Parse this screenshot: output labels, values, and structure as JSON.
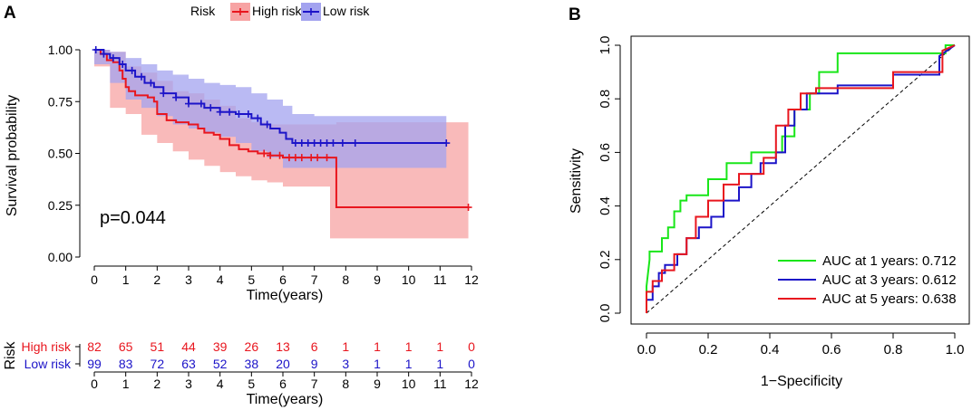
{
  "panel_a_label": "A",
  "panel_b_label": "B",
  "chart_data": [
    {
      "type": "line",
      "subtype": "kaplan-meier",
      "title": "",
      "xlabel": "Time(years)",
      "ylabel": "Survival probability",
      "xlim": [
        0,
        12
      ],
      "ylim": [
        0,
        1
      ],
      "xticks": [
        "0",
        "1",
        "2",
        "3",
        "4",
        "5",
        "6",
        "7",
        "8",
        "9",
        "10",
        "11",
        "12"
      ],
      "yticks": [
        "0.00",
        "0.25",
        "0.50",
        "0.75",
        "1.00"
      ],
      "legend_title": "Risk",
      "annotation": "p=0.044",
      "series": [
        {
          "name": "High risk",
          "color": "#e8161e",
          "band_color": "#f7a3a3",
          "points": [
            [
              0,
              1.0
            ],
            [
              0.2,
              0.98
            ],
            [
              0.4,
              0.95
            ],
            [
              0.6,
              0.94
            ],
            [
              0.8,
              0.9
            ],
            [
              0.9,
              0.86
            ],
            [
              1.0,
              0.82
            ],
            [
              1.1,
              0.8
            ],
            [
              1.3,
              0.78
            ],
            [
              1.7,
              0.77
            ],
            [
              1.9,
              0.75
            ],
            [
              2.0,
              0.69
            ],
            [
              2.3,
              0.66
            ],
            [
              2.6,
              0.65
            ],
            [
              3.0,
              0.64
            ],
            [
              3.3,
              0.62
            ],
            [
              3.5,
              0.6
            ],
            [
              3.8,
              0.59
            ],
            [
              4.0,
              0.57
            ],
            [
              4.3,
              0.54
            ],
            [
              4.6,
              0.52
            ],
            [
              4.9,
              0.51
            ],
            [
              5.2,
              0.5
            ],
            [
              5.6,
              0.49
            ],
            [
              6.0,
              0.48
            ],
            [
              6.4,
              0.48
            ],
            [
              7.0,
              0.48
            ],
            [
              7.5,
              0.48
            ],
            [
              7.7,
              0.24
            ],
            [
              11.9,
              0.24
            ]
          ],
          "upper": [
            [
              0,
              1.0
            ],
            [
              0.5,
              0.99
            ],
            [
              1.0,
              0.92
            ],
            [
              1.5,
              0.89
            ],
            [
              2.0,
              0.85
            ],
            [
              2.5,
              0.8
            ],
            [
              3.0,
              0.79
            ],
            [
              3.5,
              0.76
            ],
            [
              4.0,
              0.73
            ],
            [
              4.5,
              0.67
            ],
            [
              5.0,
              0.65
            ],
            [
              5.5,
              0.64
            ],
            [
              6.0,
              0.64
            ],
            [
              7.5,
              0.64
            ],
            [
              7.7,
              0.65
            ],
            [
              11.9,
              0.65
            ]
          ],
          "lower": [
            [
              0,
              1.0
            ],
            [
              0.5,
              0.92
            ],
            [
              1.0,
              0.72
            ],
            [
              1.5,
              0.69
            ],
            [
              2.0,
              0.59
            ],
            [
              2.5,
              0.55
            ],
            [
              3.0,
              0.51
            ],
            [
              3.5,
              0.47
            ],
            [
              4.0,
              0.44
            ],
            [
              4.5,
              0.41
            ],
            [
              5.0,
              0.39
            ],
            [
              5.5,
              0.37
            ],
            [
              6.0,
              0.36
            ],
            [
              7.5,
              0.34
            ],
            [
              7.7,
              0.09
            ],
            [
              11.9,
              0.09
            ]
          ],
          "censors": [
            5.4,
            5.6,
            5.9,
            6.2,
            6.4,
            6.6,
            6.9,
            7.1,
            7.4,
            11.9
          ]
        },
        {
          "name": "Low risk",
          "color": "#1c14c8",
          "band_color": "#a3a3ef",
          "points": [
            [
              0,
              1.0
            ],
            [
              0.3,
              0.98
            ],
            [
              0.5,
              0.96
            ],
            [
              0.8,
              0.93
            ],
            [
              1.0,
              0.9
            ],
            [
              1.3,
              0.87
            ],
            [
              1.6,
              0.84
            ],
            [
              1.9,
              0.82
            ],
            [
              2.2,
              0.79
            ],
            [
              2.6,
              0.77
            ],
            [
              3.0,
              0.74
            ],
            [
              3.5,
              0.72
            ],
            [
              4.0,
              0.7
            ],
            [
              4.5,
              0.69
            ],
            [
              5.0,
              0.67
            ],
            [
              5.3,
              0.64
            ],
            [
              5.6,
              0.62
            ],
            [
              5.9,
              0.6
            ],
            [
              6.1,
              0.57
            ],
            [
              6.3,
              0.55
            ],
            [
              7.0,
              0.55
            ],
            [
              11.2,
              0.55
            ]
          ],
          "upper": [
            [
              0,
              1.0
            ],
            [
              0.5,
              0.99
            ],
            [
              1.0,
              0.96
            ],
            [
              1.5,
              0.93
            ],
            [
              2.0,
              0.9
            ],
            [
              2.5,
              0.88
            ],
            [
              3.0,
              0.86
            ],
            [
              3.5,
              0.84
            ],
            [
              4.0,
              0.83
            ],
            [
              4.5,
              0.82
            ],
            [
              5.0,
              0.79
            ],
            [
              5.5,
              0.76
            ],
            [
              6.0,
              0.73
            ],
            [
              6.3,
              0.69
            ],
            [
              7.0,
              0.68
            ],
            [
              11.2,
              0.68
            ]
          ],
          "lower": [
            [
              0,
              1.0
            ],
            [
              0.5,
              0.93
            ],
            [
              1.0,
              0.84
            ],
            [
              1.5,
              0.76
            ],
            [
              2.0,
              0.72
            ],
            [
              2.5,
              0.68
            ],
            [
              3.0,
              0.64
            ],
            [
              3.5,
              0.62
            ],
            [
              4.0,
              0.6
            ],
            [
              4.5,
              0.58
            ],
            [
              5.0,
              0.55
            ],
            [
              5.5,
              0.51
            ],
            [
              6.0,
              0.48
            ],
            [
              6.3,
              0.43
            ],
            [
              7.0,
              0.43
            ],
            [
              11.2,
              0.43
            ]
          ],
          "censors": [
            0.05,
            0.3,
            0.6,
            0.9,
            1.2,
            1.5,
            1.8,
            2.2,
            2.6,
            3.0,
            3.4,
            3.7,
            4.0,
            4.3,
            4.6,
            4.9,
            5.2,
            5.5,
            6.4,
            6.6,
            6.8,
            7.0,
            7.2,
            7.4,
            7.6,
            7.9,
            8.3,
            11.2
          ]
        }
      ]
    },
    {
      "type": "table",
      "title": "Risk",
      "xlabel": "Time(years)",
      "xticks": [
        "0",
        "1",
        "2",
        "3",
        "4",
        "5",
        "6",
        "7",
        "8",
        "9",
        "10",
        "11",
        "12"
      ],
      "rows": [
        {
          "name": "High risk",
          "color": "#e8161e",
          "values": [
            "82",
            "65",
            "51",
            "44",
            "39",
            "26",
            "13",
            "6",
            "1",
            "1",
            "1",
            "1",
            "0"
          ]
        },
        {
          "name": "Low risk",
          "color": "#1c14c8",
          "values": [
            "99",
            "83",
            "72",
            "63",
            "52",
            "38",
            "20",
            "9",
            "3",
            "1",
            "1",
            "1",
            "0"
          ]
        }
      ]
    },
    {
      "type": "line",
      "subtype": "roc",
      "title": "",
      "xlabel": "1−Specificity",
      "ylabel": "Sensitivity",
      "xlim": [
        0,
        1
      ],
      "ylim": [
        0,
        1
      ],
      "xticks": [
        "0.0",
        "0.2",
        "0.4",
        "0.6",
        "0.8",
        "1.0"
      ],
      "yticks": [
        "0.0",
        "0.2",
        "0.4",
        "0.6",
        "0.8",
        "1.0"
      ],
      "diagonal": true,
      "series": [
        {
          "name": "AUC at 1 years: 0.712",
          "color": "#19e619",
          "points": [
            [
              0,
              0
            ],
            [
              0,
              0.1
            ],
            [
              0.01,
              0.2
            ],
            [
              0.01,
              0.23
            ],
            [
              0.05,
              0.23
            ],
            [
              0.05,
              0.28
            ],
            [
              0.07,
              0.28
            ],
            [
              0.07,
              0.32
            ],
            [
              0.09,
              0.32
            ],
            [
              0.09,
              0.38
            ],
            [
              0.11,
              0.38
            ],
            [
              0.11,
              0.42
            ],
            [
              0.13,
              0.42
            ],
            [
              0.13,
              0.44
            ],
            [
              0.2,
              0.44
            ],
            [
              0.2,
              0.5
            ],
            [
              0.26,
              0.5
            ],
            [
              0.26,
              0.56
            ],
            [
              0.34,
              0.56
            ],
            [
              0.34,
              0.6
            ],
            [
              0.44,
              0.6
            ],
            [
              0.44,
              0.66
            ],
            [
              0.48,
              0.66
            ],
            [
              0.48,
              0.76
            ],
            [
              0.53,
              0.76
            ],
            [
              0.53,
              0.82
            ],
            [
              0.56,
              0.82
            ],
            [
              0.56,
              0.9
            ],
            [
              0.62,
              0.9
            ],
            [
              0.62,
              0.97
            ],
            [
              0.97,
              0.97
            ],
            [
              0.97,
              1.0
            ],
            [
              1.0,
              1.0
            ]
          ]
        },
        {
          "name": "AUC at 3 years: 0.612",
          "color": "#1c14c8",
          "points": [
            [
              0,
              0
            ],
            [
              0,
              0.05
            ],
            [
              0.02,
              0.05
            ],
            [
              0.02,
              0.1
            ],
            [
              0.04,
              0.1
            ],
            [
              0.04,
              0.15
            ],
            [
              0.06,
              0.15
            ],
            [
              0.06,
              0.18
            ],
            [
              0.1,
              0.18
            ],
            [
              0.1,
              0.22
            ],
            [
              0.13,
              0.22
            ],
            [
              0.13,
              0.28
            ],
            [
              0.17,
              0.28
            ],
            [
              0.17,
              0.32
            ],
            [
              0.21,
              0.32
            ],
            [
              0.21,
              0.36
            ],
            [
              0.25,
              0.36
            ],
            [
              0.25,
              0.42
            ],
            [
              0.3,
              0.42
            ],
            [
              0.3,
              0.47
            ],
            [
              0.34,
              0.47
            ],
            [
              0.34,
              0.52
            ],
            [
              0.37,
              0.52
            ],
            [
              0.37,
              0.56
            ],
            [
              0.42,
              0.56
            ],
            [
              0.42,
              0.6
            ],
            [
              0.45,
              0.6
            ],
            [
              0.45,
              0.7
            ],
            [
              0.48,
              0.7
            ],
            [
              0.48,
              0.76
            ],
            [
              0.52,
              0.76
            ],
            [
              0.52,
              0.82
            ],
            [
              0.62,
              0.82
            ],
            [
              0.62,
              0.85
            ],
            [
              0.8,
              0.85
            ],
            [
              0.8,
              0.89
            ],
            [
              0.95,
              0.89
            ],
            [
              0.95,
              0.96
            ],
            [
              1.0,
              1.0
            ]
          ]
        },
        {
          "name": "AUC at 5 years: 0.638",
          "color": "#e8161e",
          "points": [
            [
              0,
              0
            ],
            [
              0,
              0.08
            ],
            [
              0.02,
              0.08
            ],
            [
              0.02,
              0.12
            ],
            [
              0.05,
              0.12
            ],
            [
              0.05,
              0.16
            ],
            [
              0.09,
              0.16
            ],
            [
              0.09,
              0.22
            ],
            [
              0.13,
              0.22
            ],
            [
              0.13,
              0.28
            ],
            [
              0.16,
              0.28
            ],
            [
              0.16,
              0.36
            ],
            [
              0.2,
              0.36
            ],
            [
              0.2,
              0.42
            ],
            [
              0.25,
              0.42
            ],
            [
              0.25,
              0.48
            ],
            [
              0.3,
              0.48
            ],
            [
              0.3,
              0.52
            ],
            [
              0.38,
              0.52
            ],
            [
              0.38,
              0.58
            ],
            [
              0.42,
              0.58
            ],
            [
              0.42,
              0.7
            ],
            [
              0.46,
              0.7
            ],
            [
              0.46,
              0.76
            ],
            [
              0.5,
              0.76
            ],
            [
              0.5,
              0.82
            ],
            [
              0.55,
              0.82
            ],
            [
              0.55,
              0.84
            ],
            [
              0.8,
              0.84
            ],
            [
              0.8,
              0.9
            ],
            [
              0.96,
              0.9
            ],
            [
              0.96,
              0.98
            ],
            [
              1.0,
              1.0
            ]
          ]
        }
      ]
    }
  ]
}
